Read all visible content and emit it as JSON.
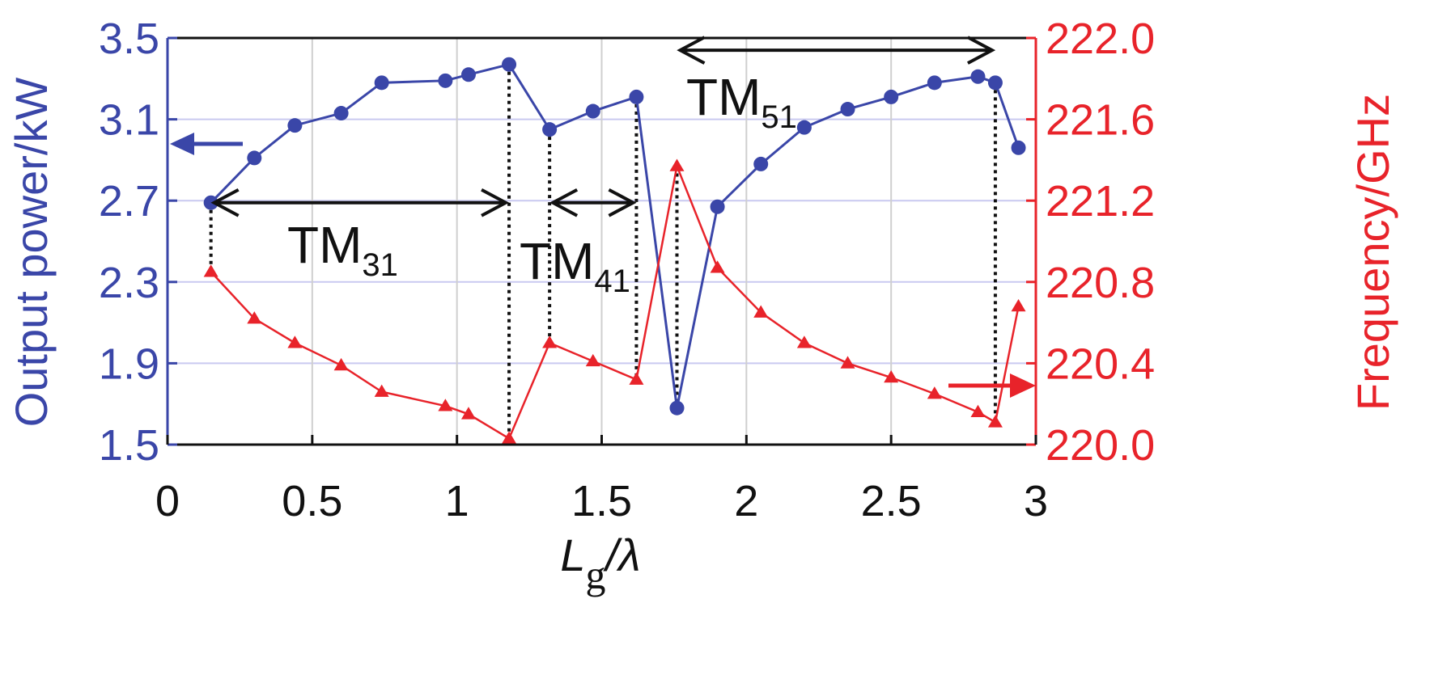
{
  "chart_data": {
    "type": "line",
    "x": {
      "label_main": "L",
      "label_sub": "g",
      "label_tail": "/λ",
      "range": [
        0,
        3
      ],
      "ticks": [
        0,
        0.5,
        1,
        1.5,
        2,
        2.5,
        3
      ],
      "tick_labels": [
        "0",
        "0.5",
        "1",
        "1.5",
        "2",
        "2.5",
        "3"
      ]
    },
    "y_left": {
      "label": "Output power/kW",
      "range": [
        1.5,
        3.5
      ],
      "ticks": [
        1.5,
        1.9,
        2.3,
        2.7,
        3.1,
        3.5
      ],
      "tick_labels": [
        "1.5",
        "1.9",
        "2.3",
        "2.7",
        "3.1",
        "3.5"
      ]
    },
    "y_right": {
      "label": "Frequency/GHz",
      "range": [
        220.0,
        222.0
      ],
      "ticks": [
        220.0,
        220.4,
        220.8,
        221.2,
        221.6,
        222.0
      ],
      "tick_labels": [
        "220.0",
        "220.4",
        "220.8",
        "221.2",
        "221.6",
        "222.0"
      ]
    },
    "grid": true,
    "series": [
      {
        "axis": "left",
        "marker": "circle",
        "color": "#3a46a8",
        "points": [
          [
            0.15,
            2.69
          ],
          [
            0.3,
            2.91
          ],
          [
            0.44,
            3.07
          ],
          [
            0.6,
            3.13
          ],
          [
            0.74,
            3.28
          ],
          [
            0.96,
            3.29
          ],
          [
            1.04,
            3.32
          ],
          [
            1.18,
            3.37
          ],
          [
            1.32,
            3.05
          ],
          [
            1.47,
            3.14
          ],
          [
            1.62,
            3.21
          ],
          [
            1.76,
            1.68
          ],
          [
            1.9,
            2.67
          ],
          [
            2.05,
            2.88
          ],
          [
            2.2,
            3.06
          ],
          [
            2.35,
            3.15
          ],
          [
            2.5,
            3.21
          ],
          [
            2.65,
            3.28
          ],
          [
            2.8,
            3.31
          ],
          [
            2.86,
            3.28
          ],
          [
            2.94,
            2.96
          ]
        ]
      },
      {
        "axis": "right",
        "marker": "triangle",
        "color": "#e8232a",
        "points": [
          [
            0.15,
            220.85
          ],
          [
            0.3,
            220.62
          ],
          [
            0.44,
            220.5
          ],
          [
            0.6,
            220.39
          ],
          [
            0.74,
            220.26
          ],
          [
            0.96,
            220.19
          ],
          [
            1.04,
            220.15
          ],
          [
            1.18,
            220.03
          ],
          [
            1.32,
            220.5
          ],
          [
            1.47,
            220.41
          ],
          [
            1.62,
            220.32
          ],
          [
            1.76,
            221.37
          ],
          [
            1.9,
            220.87
          ],
          [
            2.05,
            220.65
          ],
          [
            2.2,
            220.5
          ],
          [
            2.35,
            220.4
          ],
          [
            2.5,
            220.33
          ],
          [
            2.65,
            220.25
          ],
          [
            2.8,
            220.16
          ],
          [
            2.86,
            220.11
          ],
          [
            2.94,
            220.68
          ]
        ]
      }
    ],
    "dotted_lines": [
      {
        "x": 0.15,
        "y_left": 2.69,
        "y_right": 220.85
      },
      {
        "x": 1.18,
        "y_left": 3.37,
        "y_right": 220.03
      },
      {
        "x": 1.32,
        "y_left": 3.05,
        "y_right": 220.5
      },
      {
        "x": 1.62,
        "y_left": 3.21,
        "y_right": 220.32
      },
      {
        "x": 1.76,
        "y_left": 1.68,
        "y_right": 221.37
      },
      {
        "x": 2.86,
        "y_left": 3.28,
        "y_right": 220.11
      }
    ],
    "mode_spans": [
      {
        "label": "TM",
        "sub": "31",
        "x_start": 0.15,
        "x_end": 1.18,
        "y_left": 2.69
      },
      {
        "label": "TM",
        "sub": "41",
        "x_start": 1.32,
        "x_end": 1.62,
        "y_left": 2.69
      },
      {
        "label": "TM",
        "sub": "51",
        "x_start": 1.76,
        "x_end": 2.86,
        "y_left": 3.44
      }
    ],
    "indicator_arrows": [
      {
        "points_to": "left",
        "color": "#3a46a8"
      },
      {
        "points_to": "right",
        "color": "#e8232a"
      }
    ]
  }
}
